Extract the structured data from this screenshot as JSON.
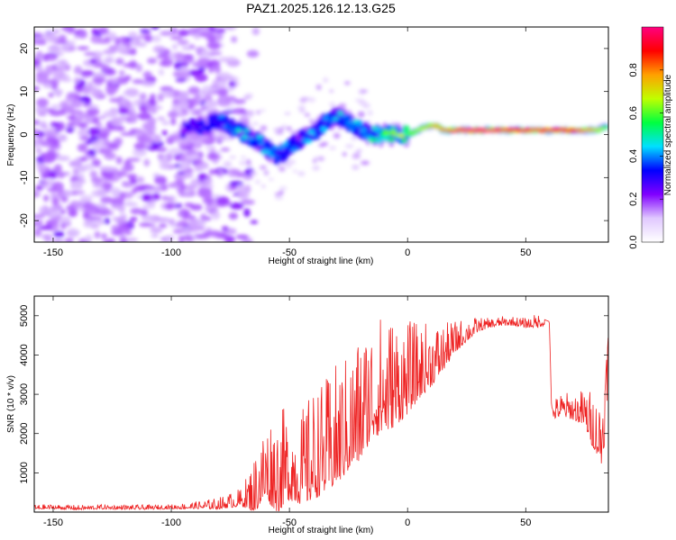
{
  "title": "PAZ1.2025.126.12.13.G25",
  "chart_data": [
    {
      "type": "heatmap",
      "xlabel": "Height of straight line (km)",
      "ylabel": "Frequency (Hz)",
      "xlim": [
        -158,
        85
      ],
      "ylim": [
        -25,
        25
      ],
      "x_ticks": [
        -150,
        -100,
        -50,
        0,
        50
      ],
      "y_ticks": [
        -20,
        -10,
        0,
        10,
        20
      ],
      "colorbar": {
        "label": "Normalized spectral amplitude",
        "range": [
          0,
          1
        ],
        "ticks": [
          0.0,
          0.2,
          0.4,
          0.6,
          0.8
        ],
        "colormap": [
          "#ffffff",
          "#e0c8ff",
          "#8000ff",
          "#0000ff",
          "#00e0ff",
          "#00ff40",
          "#c0ff00",
          "#ffa000",
          "#ff0000",
          "#ff0080"
        ]
      },
      "ridge": {
        "x": [
          -95,
          -88,
          -80,
          -72,
          -65,
          -60,
          -55,
          -50,
          -45,
          -40,
          -35,
          -30,
          -25,
          -20,
          -15,
          -10,
          -5,
          0,
          5,
          8,
          12,
          15,
          20,
          30,
          40,
          50,
          60,
          70,
          80,
          85
        ],
        "y": [
          1,
          2,
          3,
          1,
          -1,
          -3,
          -5,
          -3,
          -1,
          0,
          3,
          4,
          3,
          1,
          0,
          0,
          0,
          0,
          1,
          2,
          2,
          1,
          1,
          1,
          1,
          1,
          1,
          1,
          1,
          2
        ],
        "amplitude": [
          0.15,
          0.2,
          0.25,
          0.3,
          0.3,
          0.32,
          0.3,
          0.28,
          0.26,
          0.28,
          0.3,
          0.3,
          0.28,
          0.3,
          0.35,
          0.4,
          0.45,
          0.5,
          0.55,
          0.6,
          0.65,
          0.7,
          0.85,
          0.95,
          0.85,
          0.8,
          0.85,
          0.8,
          0.6,
          0.5
        ]
      },
      "noise_region_x": [
        -158,
        -70
      ]
    },
    {
      "type": "line",
      "xlabel": "Height of straight line (km)",
      "ylabel": "SNR (10 * v/v)",
      "xlim": [
        -158,
        85
      ],
      "ylim": [
        0,
        5500
      ],
      "x_ticks": [
        -150,
        -100,
        -50,
        0,
        50
      ],
      "y_ticks": [
        1000,
        2000,
        3000,
        4000,
        5000
      ],
      "color": "#ee2222",
      "series": [
        {
          "name": "",
          "x": [
            -158,
            -150,
            -140,
            -130,
            -120,
            -110,
            -100,
            -90,
            -80,
            -70,
            -65,
            -60,
            -55,
            -50,
            -45,
            -40,
            -35,
            -30,
            -25,
            -20,
            -15,
            -10,
            -5,
            0,
            5,
            10,
            15,
            20,
            25,
            30,
            35,
            40,
            45,
            50,
            55,
            58,
            60,
            61,
            65,
            70,
            75,
            78,
            80,
            82,
            84,
            85
          ],
          "y": [
            120,
            130,
            110,
            125,
            120,
            115,
            130,
            160,
            200,
            350,
            600,
            1200,
            1100,
            1300,
            1200,
            1500,
            1700,
            2000,
            2300,
            2700,
            3200,
            3300,
            3400,
            3500,
            3700,
            3900,
            4100,
            4400,
            4600,
            4750,
            4800,
            4850,
            4850,
            4800,
            4850,
            4900,
            4850,
            2550,
            2700,
            2650,
            2600,
            2300,
            2100,
            2000,
            3000,
            4500
          ],
          "noise_amplitude": [
            100,
            100,
            100,
            100,
            100,
            100,
            100,
            150,
            250,
            400,
            1200,
            1800,
            2200,
            2000,
            2000,
            2400,
            2400,
            2600,
            2500,
            2800,
            2600,
            2600,
            2400,
            2000,
            1600,
            1400,
            1000,
            700,
            500,
            300,
            200,
            200,
            200,
            200,
            300,
            300,
            300,
            400,
            500,
            600,
            800,
            1200,
            1200,
            1600,
            2000,
            1200
          ]
        }
      ]
    }
  ]
}
